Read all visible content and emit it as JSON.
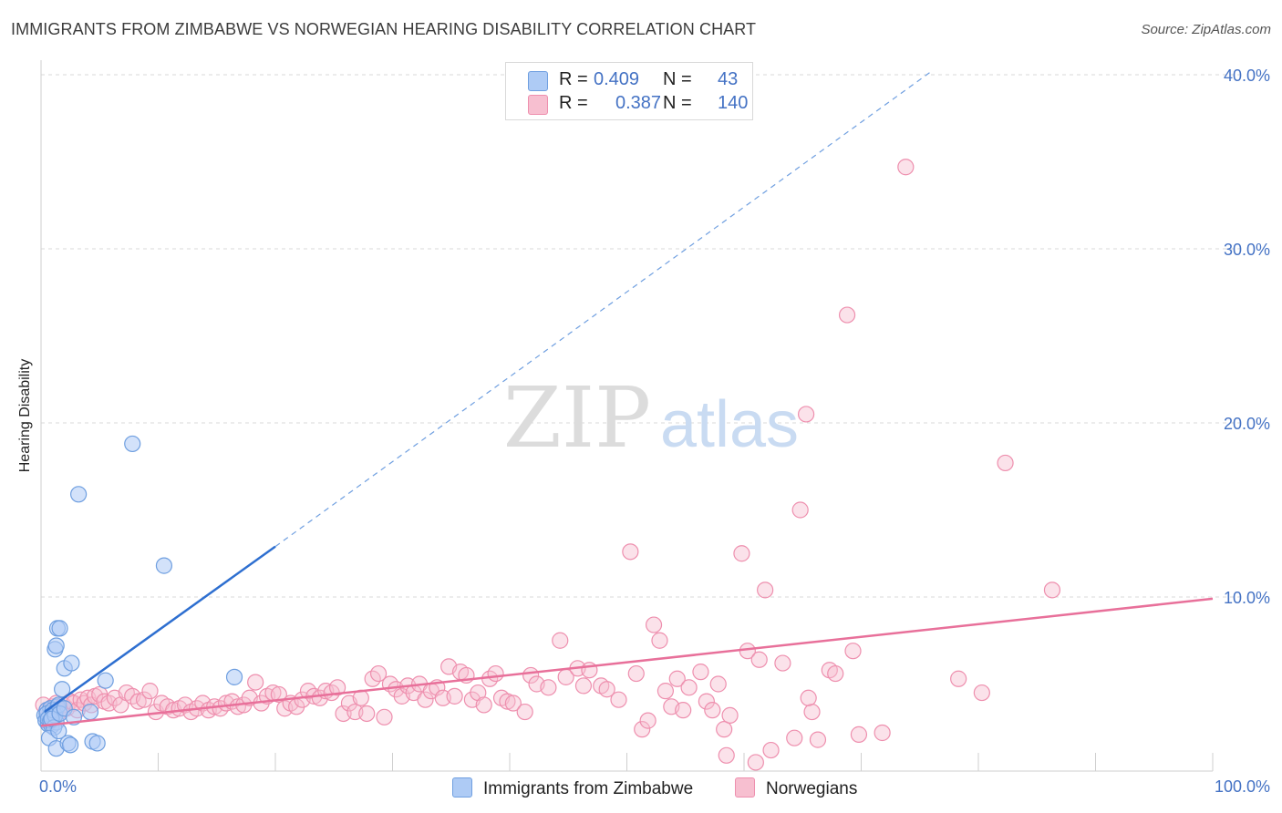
{
  "title": "IMMIGRANTS FROM ZIMBABWE VS NORWEGIAN HEARING DISABILITY CORRELATION CHART",
  "source": "Source: ZipAtlas.com",
  "watermark": {
    "zip": "ZIP",
    "atlas": "atlas"
  },
  "colors": {
    "blue_fill": "#aecbf5",
    "blue_stroke": "#6f9fe0",
    "blue_line": "#2e6fd0",
    "pink_fill": "#f7bfd0",
    "pink_stroke": "#ee8fae",
    "pink_line": "#e8709a",
    "grid": "#d9d9d9",
    "tick_text": "#4472c4"
  },
  "legend": {
    "rows": [
      {
        "r_label": "R =",
        "r_value": "0.409",
        "n_label": "N =",
        "n_value": "43"
      },
      {
        "r_label": "R =",
        "r_value": "0.387",
        "n_label": "N =",
        "n_value": "140"
      }
    ]
  },
  "bottom_legend": [
    "Immigrants from Zimbabwe",
    "Norwegians"
  ],
  "chart_data": {
    "type": "scatter",
    "title": "IMMIGRANTS FROM ZIMBABWE VS NORWEGIAN HEARING DISABILITY CORRELATION CHART",
    "xlabel": "",
    "ylabel": "Hearing Disability",
    "xlim": [
      0,
      100
    ],
    "ylim": [
      0,
      42
    ],
    "x_tick_labels": [
      "0.0%",
      "100.0%"
    ],
    "y_ticks": [
      10,
      20,
      30,
      40
    ],
    "y_tick_labels": [
      "10.0%",
      "20.0%",
      "30.0%",
      "40.0%"
    ],
    "grid": true,
    "series": [
      {
        "name": "Immigrants from Zimbabwe",
        "R": 0.409,
        "N": 43,
        "trend_solid": [
          [
            0.3,
            3.4
          ],
          [
            20,
            12.9
          ]
        ],
        "trend_dashed": [
          [
            20,
            12.9
          ],
          [
            76,
            40.2
          ]
        ],
        "points": [
          [
            0.3,
            3.2
          ],
          [
            0.4,
            2.9
          ],
          [
            0.5,
            3.5
          ],
          [
            0.6,
            2.7
          ],
          [
            0.7,
            3.1
          ],
          [
            0.8,
            3.6
          ],
          [
            0.9,
            2.6
          ],
          [
            1.0,
            3.3
          ],
          [
            1.1,
            3.0
          ],
          [
            1.2,
            3.4
          ],
          [
            1.3,
            2.8
          ],
          [
            1.4,
            3.7
          ],
          [
            0.5,
            3.3
          ],
          [
            0.6,
            3.0
          ],
          [
            0.8,
            2.9
          ],
          [
            1.0,
            3.5
          ],
          [
            1.2,
            3.2
          ],
          [
            1.5,
            3.8
          ],
          [
            1.1,
            2.5
          ],
          [
            0.9,
            3.0
          ],
          [
            1.6,
            3.3
          ],
          [
            2.0,
            3.6
          ],
          [
            0.7,
            1.9
          ],
          [
            1.3,
            1.3
          ],
          [
            1.5,
            2.3
          ],
          [
            1.2,
            7.0
          ],
          [
            1.3,
            7.2
          ],
          [
            1.4,
            8.2
          ],
          [
            1.6,
            8.2
          ],
          [
            1.8,
            4.7
          ],
          [
            2.0,
            5.9
          ],
          [
            2.6,
            6.2
          ],
          [
            2.3,
            1.6
          ],
          [
            2.5,
            1.5
          ],
          [
            3.2,
            15.9
          ],
          [
            4.4,
            1.7
          ],
          [
            4.8,
            1.6
          ],
          [
            4.2,
            3.4
          ],
          [
            5.5,
            5.2
          ],
          [
            7.8,
            18.8
          ],
          [
            10.5,
            11.8
          ],
          [
            16.5,
            5.4
          ],
          [
            2.8,
            3.1
          ]
        ]
      },
      {
        "name": "Norwegians",
        "R": 0.387,
        "N": 140,
        "trend": [
          [
            0,
            2.6
          ],
          [
            100,
            9.9
          ]
        ],
        "points": [
          [
            0.2,
            3.8
          ],
          [
            0.5,
            3.5
          ],
          [
            0.8,
            3.3
          ],
          [
            1.0,
            3.7
          ],
          [
            1.3,
            3.9
          ],
          [
            1.6,
            3.4
          ],
          [
            1.9,
            3.8
          ],
          [
            2.2,
            3.6
          ],
          [
            2.5,
            4.0
          ],
          [
            2.8,
            3.9
          ],
          [
            3.1,
            3.5
          ],
          [
            3.4,
            4.1
          ],
          [
            3.7,
            3.9
          ],
          [
            4.0,
            4.2
          ],
          [
            4.3,
            3.8
          ],
          [
            4.6,
            4.3
          ],
          [
            5.0,
            4.4
          ],
          [
            5.4,
            4.0
          ],
          [
            5.8,
            3.9
          ],
          [
            6.3,
            4.2
          ],
          [
            6.8,
            3.8
          ],
          [
            7.3,
            4.5
          ],
          [
            7.8,
            4.3
          ],
          [
            8.3,
            4.0
          ],
          [
            8.8,
            4.1
          ],
          [
            9.3,
            4.6
          ],
          [
            9.8,
            3.4
          ],
          [
            10.3,
            3.9
          ],
          [
            10.8,
            3.7
          ],
          [
            11.3,
            3.5
          ],
          [
            11.8,
            3.6
          ],
          [
            12.3,
            3.8
          ],
          [
            12.8,
            3.4
          ],
          [
            13.3,
            3.6
          ],
          [
            13.8,
            3.9
          ],
          [
            14.3,
            3.5
          ],
          [
            14.8,
            3.7
          ],
          [
            15.3,
            3.6
          ],
          [
            15.8,
            3.9
          ],
          [
            16.3,
            4.0
          ],
          [
            16.8,
            3.7
          ],
          [
            17.3,
            3.8
          ],
          [
            17.8,
            4.2
          ],
          [
            18.3,
            5.1
          ],
          [
            18.8,
            3.9
          ],
          [
            19.3,
            4.3
          ],
          [
            19.8,
            4.5
          ],
          [
            20.3,
            4.4
          ],
          [
            20.8,
            3.6
          ],
          [
            21.3,
            3.9
          ],
          [
            21.8,
            3.7
          ],
          [
            22.3,
            4.1
          ],
          [
            22.8,
            4.6
          ],
          [
            23.3,
            4.3
          ],
          [
            23.8,
            4.2
          ],
          [
            24.3,
            4.6
          ],
          [
            24.8,
            4.5
          ],
          [
            25.3,
            4.8
          ],
          [
            25.8,
            3.3
          ],
          [
            26.3,
            3.9
          ],
          [
            26.8,
            3.4
          ],
          [
            27.3,
            4.2
          ],
          [
            27.8,
            3.3
          ],
          [
            28.3,
            5.3
          ],
          [
            28.8,
            5.6
          ],
          [
            29.3,
            3.1
          ],
          [
            29.8,
            5.0
          ],
          [
            30.3,
            4.7
          ],
          [
            30.8,
            4.3
          ],
          [
            31.3,
            4.9
          ],
          [
            31.8,
            4.5
          ],
          [
            32.3,
            5.0
          ],
          [
            32.8,
            4.1
          ],
          [
            33.3,
            4.6
          ],
          [
            33.8,
            4.8
          ],
          [
            34.3,
            4.2
          ],
          [
            34.8,
            6.0
          ],
          [
            35.3,
            4.3
          ],
          [
            35.8,
            5.7
          ],
          [
            36.3,
            5.5
          ],
          [
            36.8,
            4.1
          ],
          [
            37.3,
            4.5
          ],
          [
            37.8,
            3.8
          ],
          [
            38.3,
            5.3
          ],
          [
            38.8,
            5.6
          ],
          [
            39.3,
            4.2
          ],
          [
            39.8,
            4.0
          ],
          [
            40.3,
            3.9
          ],
          [
            41.3,
            3.4
          ],
          [
            41.8,
            5.5
          ],
          [
            42.3,
            5.0
          ],
          [
            43.3,
            4.8
          ],
          [
            44.3,
            7.5
          ],
          [
            44.8,
            5.4
          ],
          [
            45.8,
            5.9
          ],
          [
            46.3,
            4.9
          ],
          [
            46.8,
            5.8
          ],
          [
            47.8,
            4.9
          ],
          [
            48.3,
            4.7
          ],
          [
            49.3,
            4.1
          ],
          [
            50.3,
            12.6
          ],
          [
            50.8,
            5.6
          ],
          [
            51.3,
            2.4
          ],
          [
            51.8,
            2.9
          ],
          [
            52.3,
            8.4
          ],
          [
            52.8,
            7.5
          ],
          [
            53.3,
            4.6
          ],
          [
            53.8,
            3.7
          ],
          [
            54.3,
            5.3
          ],
          [
            54.8,
            3.5
          ],
          [
            55.3,
            4.8
          ],
          [
            56.3,
            5.7
          ],
          [
            56.8,
            4.0
          ],
          [
            57.3,
            3.5
          ],
          [
            57.8,
            5.0
          ],
          [
            58.3,
            2.4
          ],
          [
            58.8,
            3.2
          ],
          [
            59.8,
            12.5
          ],
          [
            60.3,
            6.9
          ],
          [
            61.3,
            6.4
          ],
          [
            61.8,
            10.4
          ],
          [
            62.3,
            1.2
          ],
          [
            63.3,
            6.2
          ],
          [
            64.3,
            1.9
          ],
          [
            64.8,
            15.0
          ],
          [
            65.3,
            20.5
          ],
          [
            65.8,
            3.4
          ],
          [
            66.3,
            1.8
          ],
          [
            67.3,
            5.8
          ],
          [
            67.8,
            5.6
          ],
          [
            68.8,
            26.2
          ],
          [
            69.3,
            6.9
          ],
          [
            69.8,
            2.1
          ],
          [
            71.8,
            2.2
          ],
          [
            73.8,
            34.7
          ],
          [
            78.3,
            5.3
          ],
          [
            80.3,
            4.5
          ],
          [
            82.3,
            17.7
          ],
          [
            86.3,
            10.4
          ],
          [
            58.5,
            0.9
          ],
          [
            61.0,
            0.5
          ],
          [
            65.5,
            4.2
          ]
        ]
      }
    ]
  }
}
